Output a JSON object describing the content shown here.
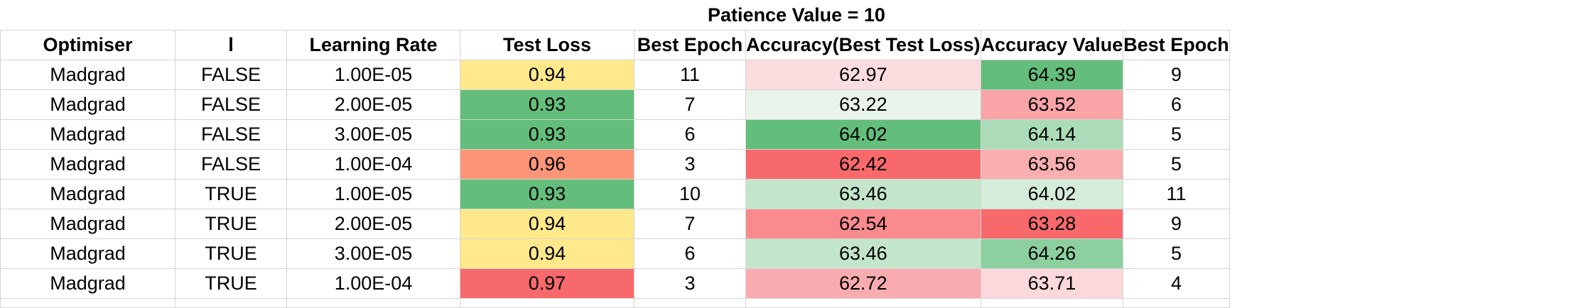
{
  "title": "Patience Value = 10",
  "headers": [
    "Optimiser",
    "l",
    "Learning Rate",
    "Test Loss",
    "Best Epoch",
    "Accuracy(Best Test Loss)",
    "Accuracy Value",
    "Best Epoch"
  ],
  "rows": [
    {
      "optimiser": "Madgrad",
      "l": "FALSE",
      "lr": "1.00E-05",
      "test_loss": "0.94",
      "best_epoch": "11",
      "acc_best_loss": "62.97",
      "acc_value": "64.39",
      "best_epoch2": "9"
    },
    {
      "optimiser": "Madgrad",
      "l": "FALSE",
      "lr": "2.00E-05",
      "test_loss": "0.93",
      "best_epoch": "7",
      "acc_best_loss": "63.22",
      "acc_value": "63.52",
      "best_epoch2": "6"
    },
    {
      "optimiser": "Madgrad",
      "l": "FALSE",
      "lr": "3.00E-05",
      "test_loss": "0.93",
      "best_epoch": "6",
      "acc_best_loss": "64.02",
      "acc_value": "64.14",
      "best_epoch2": "5"
    },
    {
      "optimiser": "Madgrad",
      "l": "FALSE",
      "lr": "1.00E-04",
      "test_loss": "0.96",
      "best_epoch": "3",
      "acc_best_loss": "62.42",
      "acc_value": "63.56",
      "best_epoch2": "5"
    },
    {
      "optimiser": "Madgrad",
      "l": "TRUE",
      "lr": "1.00E-05",
      "test_loss": "0.93",
      "best_epoch": "10",
      "acc_best_loss": "63.46",
      "acc_value": "64.02",
      "best_epoch2": "11"
    },
    {
      "optimiser": "Madgrad",
      "l": "TRUE",
      "lr": "2.00E-05",
      "test_loss": "0.94",
      "best_epoch": "7",
      "acc_best_loss": "62.54",
      "acc_value": "63.28",
      "best_epoch2": "9"
    },
    {
      "optimiser": "Madgrad",
      "l": "TRUE",
      "lr": "3.00E-05",
      "test_loss": "0.94",
      "best_epoch": "6",
      "acc_best_loss": "63.46",
      "acc_value": "64.26",
      "best_epoch2": "5"
    },
    {
      "optimiser": "Madgrad",
      "l": "TRUE",
      "lr": "1.00E-04",
      "test_loss": "0.97",
      "best_epoch": "3",
      "acc_best_loss": "62.72",
      "acc_value": "63.71",
      "best_epoch2": "4"
    }
  ],
  "cell_colors": {
    "test_loss": [
      "#ffe98a",
      "#63be7b",
      "#63be7b",
      "#fc9578",
      "#63be7b",
      "#ffe98a",
      "#ffe98a",
      "#f8696b"
    ],
    "acc_best_loss": [
      "#fbdde0",
      "#e8f3ea",
      "#63be7b",
      "#f8696b",
      "#c3e6cb",
      "#f98a8d",
      "#c3e6cb",
      "#f9acaf"
    ],
    "acc_value": [
      "#63be7b",
      "#f9a4a7",
      "#abdcb7",
      "#f9aeb0",
      "#d4ecda",
      "#f8696b",
      "#8cd0a0",
      "#fbd8db"
    ]
  }
}
